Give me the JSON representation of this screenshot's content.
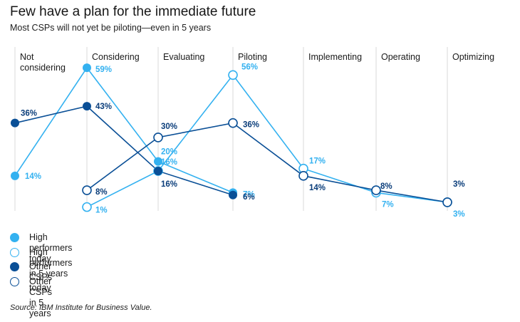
{
  "title": "Few have a plan for the immediate future",
  "subtitle": "Most CSPs will not yet be piloting—even in 5 years",
  "source": "Source: IBM Institute for Business Value.",
  "colors": {
    "light_blue": "#33b1f0",
    "dark_blue": "#0a4f96",
    "grid": "#d9d9d9",
    "label_light": "#33b1f0",
    "label_dark": "#0a3d7a"
  },
  "chart_data": {
    "type": "line",
    "categories": [
      "Not considering",
      "Considering",
      "Evaluating",
      "Piloting",
      "Implementing",
      "Operating",
      "Optimizing"
    ],
    "category_label_lines": [
      [
        "Not",
        "considering"
      ],
      [
        "Considering"
      ],
      [
        "Evaluating"
      ],
      [
        "Piloting"
      ],
      [
        "Implementing"
      ],
      [
        "Operating"
      ],
      [
        "Optimizing"
      ]
    ],
    "grid": "vertical",
    "legend_position": "bottom-left",
    "series": [
      {
        "name": "High performers today",
        "style": "filled",
        "color": "#33b1f0",
        "values": [
          14,
          59,
          20,
          7,
          null,
          null,
          null
        ],
        "labels": [
          "14%",
          "59%",
          "20%",
          "7%",
          null,
          null,
          null
        ]
      },
      {
        "name": "High performers in 5 years",
        "style": "hollow",
        "color": "#33b1f0",
        "values": [
          null,
          1,
          16,
          56,
          17,
          7,
          3
        ],
        "labels": [
          null,
          "1%",
          "16%",
          "56%",
          "17%",
          "7%",
          "3%"
        ]
      },
      {
        "name": "Other CSPs today",
        "style": "filled",
        "color": "#0a4f96",
        "values": [
          36,
          43,
          16,
          6,
          null,
          null,
          null
        ],
        "labels": [
          "36%",
          "43%",
          "16%",
          "6%",
          null,
          null,
          null
        ]
      },
      {
        "name": "Other CSPs in 5 years",
        "style": "hollow",
        "color": "#0a4f96",
        "values": [
          null,
          8,
          30,
          36,
          14,
          8,
          3
        ],
        "labels": [
          null,
          "8%",
          "30%",
          "36%",
          "14%",
          "8%",
          "3%"
        ]
      }
    ]
  }
}
